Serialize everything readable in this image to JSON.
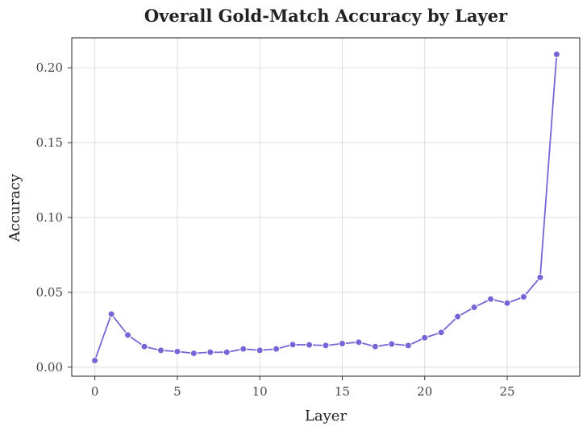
{
  "chart_data": {
    "type": "line",
    "title": "Overall Gold-Match Accuracy by Layer",
    "xlabel": "Layer",
    "ylabel": "Accuracy",
    "xlim": [
      -1.4,
      29.4
    ],
    "ylim": [
      -0.006,
      0.22
    ],
    "xticks": [
      0,
      5,
      10,
      15,
      20,
      25
    ],
    "yticks": [
      0.0,
      0.05,
      0.1,
      0.15,
      0.2
    ],
    "ytick_labels": [
      "0.00",
      "0.05",
      "0.10",
      "0.15",
      "0.20"
    ],
    "grid": true,
    "legend": "none",
    "series": [
      {
        "color": "#7466d6",
        "marker": "circle",
        "x": [
          0,
          1,
          2,
          3,
          4,
          5,
          6,
          7,
          8,
          9,
          10,
          11,
          12,
          13,
          14,
          15,
          16,
          17,
          18,
          19,
          20,
          21,
          22,
          23,
          24,
          25,
          26,
          27,
          28
        ],
        "y": [
          0.0045,
          0.0355,
          0.0215,
          0.0138,
          0.0113,
          0.0105,
          0.0093,
          0.01,
          0.01,
          0.0122,
          0.0113,
          0.0122,
          0.0151,
          0.0149,
          0.0145,
          0.0158,
          0.0167,
          0.0138,
          0.0155,
          0.0145,
          0.0197,
          0.0232,
          0.0338,
          0.04,
          0.0455,
          0.0428,
          0.047,
          0.06,
          0.209
        ]
      }
    ]
  }
}
